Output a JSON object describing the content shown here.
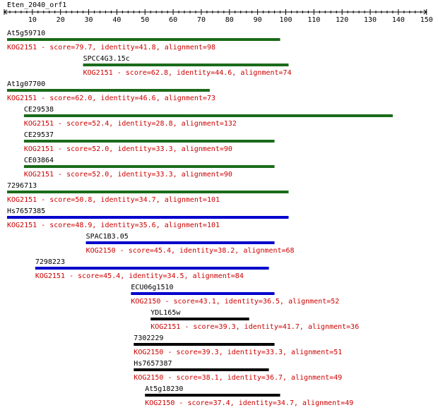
{
  "title": "Eten_2040_orf1",
  "axis": {
    "min": 0,
    "max": 150,
    "labeled_ticks": [
      10,
      20,
      30,
      40,
      50,
      60,
      70,
      80,
      90,
      100,
      110,
      120,
      130,
      140,
      150
    ]
  },
  "colors": {
    "green": "#1a6b1a",
    "blue": "#0000cc",
    "black": "#000000",
    "stats_text": "#cc0000"
  },
  "hits": [
    {
      "name": "At5g59710",
      "stats": "KOG2151 - score=79.7, identity=41.8, alignment=98",
      "start": 1,
      "end": 98,
      "color": "green"
    },
    {
      "name": "SPCC4G3.15c",
      "stats": "KOG2151 - score=62.8, identity=44.6, alignment=74",
      "start": 28,
      "end": 101,
      "color": "green"
    },
    {
      "name": "At1g07700",
      "stats": "KOG2151 - score=62.0, identity=46.6, alignment=73",
      "start": 1,
      "end": 73,
      "color": "green"
    },
    {
      "name": "CE29538",
      "stats": "KOG2151 - score=52.4, identity=28.8, alignment=132",
      "start": 7,
      "end": 138,
      "color": "green"
    },
    {
      "name": "CE29537",
      "stats": "KOG2151 - score=52.0, identity=33.3, alignment=90",
      "start": 7,
      "end": 96,
      "color": "green"
    },
    {
      "name": "CE03864",
      "stats": "KOG2151 - score=52.0, identity=33.3, alignment=90",
      "start": 7,
      "end": 96,
      "color": "green"
    },
    {
      "name": "7296713",
      "stats": "KOG2151 - score=50.8, identity=34.7, alignment=101",
      "start": 1,
      "end": 101,
      "color": "green"
    },
    {
      "name": "Hs7657385",
      "stats": "KOG2151 - score=48.9, identity=35.6, alignment=101",
      "start": 1,
      "end": 101,
      "color": "blue"
    },
    {
      "name": "SPAC1B3.05",
      "stats": "KOG2150 - score=45.4, identity=38.2, alignment=68",
      "start": 29,
      "end": 96,
      "color": "blue"
    },
    {
      "name": "7298223",
      "stats": "KOG2151 - score=45.4, identity=34.5, alignment=84",
      "start": 11,
      "end": 94,
      "color": "blue"
    },
    {
      "name": "ECU06g1510",
      "stats": "KOG2150 - score=43.1, identity=36.5, alignment=52",
      "start": 45,
      "end": 96,
      "color": "blue"
    },
    {
      "name": "YDL165w",
      "stats": "KOG2151 - score=39.3, identity=41.7, alignment=36",
      "start": 52,
      "end": 87,
      "color": "black"
    },
    {
      "name": "7302229",
      "stats": "KOG2150 - score=39.3, identity=33.3, alignment=51",
      "start": 46,
      "end": 96,
      "color": "black"
    },
    {
      "name": "Hs7657387",
      "stats": "KOG2150 - score=38.1, identity=36.7, alignment=49",
      "start": 46,
      "end": 94,
      "color": "black"
    },
    {
      "name": "At5g18230",
      "stats": "KOG2150 - score=37.4, identity=34.7, alignment=49",
      "start": 50,
      "end": 98,
      "color": "black"
    }
  ]
}
